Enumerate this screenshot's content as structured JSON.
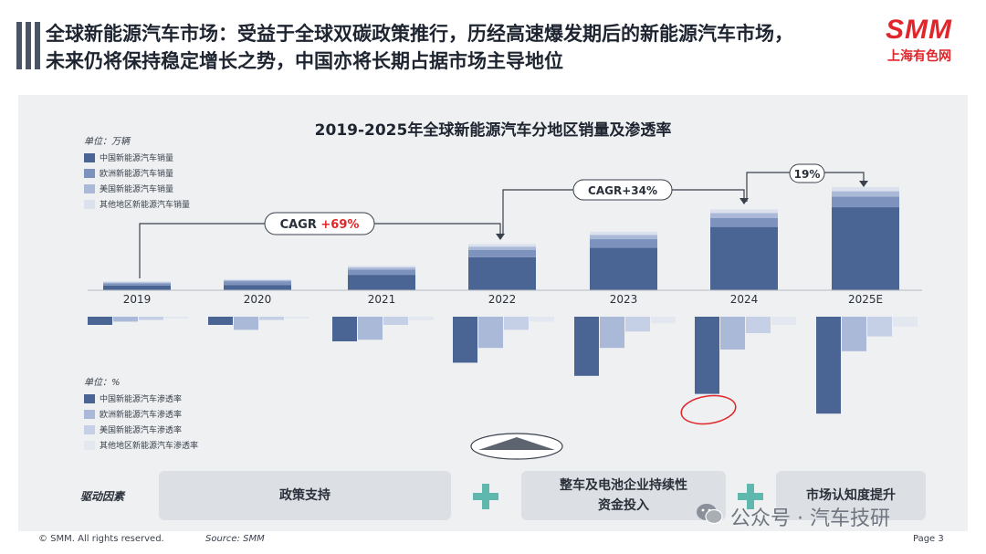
{
  "header": {
    "title_line1": "全球新能源汽车市场：受益于全球双碳政策推行，历经高速爆发期后的新能源汽车市场，",
    "title_line2": "未来仍将保持稳定增长之势，中国亦将长期占据市场主导地位",
    "logo_main": "SMM",
    "logo_sub": "上海有色网"
  },
  "chart_data": {
    "type": "bar",
    "title": "2019-2025年全球新能源汽车分地区销量及渗透率",
    "categories": [
      "2019",
      "2020",
      "2021",
      "2022",
      "2023",
      "2024",
      "2025E"
    ],
    "sales": {
      "unit": "单位：万辆",
      "stacked": true,
      "series": [
        {
          "name": "中国新能源汽车销量",
          "color": "#4a6594",
          "values": [
            90,
            100,
            290,
            620,
            800,
            1190,
            1560
          ]
        },
        {
          "name": "欧洲新能源汽车销量",
          "color": "#7d93bd",
          "values": [
            40,
            70,
            100,
            140,
            160,
            170,
            200
          ]
        },
        {
          "name": "美国新能源汽车销量",
          "color": "#aab9d8",
          "values": [
            20,
            20,
            40,
            60,
            80,
            90,
            100
          ]
        },
        {
          "name": "其他地区新能源汽车销量",
          "color": "#dbe2ee",
          "values": [
            20,
            20,
            30,
            50,
            60,
            70,
            80
          ]
        }
      ]
    },
    "penetration": {
      "unit": "单位：%",
      "series": [
        {
          "name": "中国新能源汽车渗透率",
          "color": "#4a6594",
          "values": [
            5,
            5,
            15,
            28,
            36,
            47,
            59
          ]
        },
        {
          "name": "欧洲新能源汽车渗透率",
          "color": "#aab9d8",
          "values": [
            3,
            8,
            14,
            19,
            19,
            20,
            21
          ]
        },
        {
          "name": "美国新能源汽车渗透率",
          "color": "#c5d0e6",
          "values": [
            2,
            2,
            5,
            8,
            9,
            10,
            12
          ]
        },
        {
          "name": "其他地区新能源汽车渗透率",
          "color": "#e2e7f0",
          "values": [
            1,
            1,
            2,
            3,
            4,
            5,
            6
          ]
        }
      ]
    },
    "annotations": {
      "cagr1_prefix": "CAGR ",
      "cagr1_value": "+69%",
      "cagr2": "CAGR+34%",
      "growth": "19%"
    }
  },
  "drivers": {
    "label": "驱动因素",
    "items": [
      "政策支持",
      "整车及电池企业持续性\n资金投入",
      "市场认知度提升"
    ]
  },
  "footer": {
    "copyright": "© SMM. All rights reserved.",
    "source": "Source: SMM",
    "page": "Page 3"
  },
  "watermark": "公众号 · 汽车技研",
  "colors": {
    "accent_red": "#e0262a",
    "plus_teal": "#5fb7ad",
    "panel_bg": "#eef0f2"
  }
}
